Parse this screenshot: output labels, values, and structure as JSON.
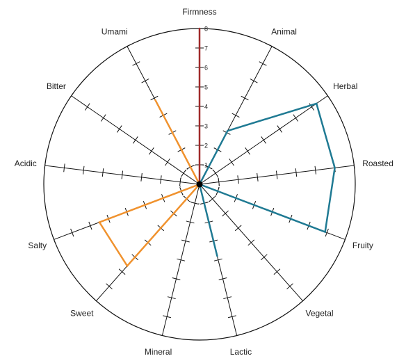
{
  "chart_data": {
    "type": "radar",
    "categories": [
      "Firmness",
      "Animal",
      "Herbal",
      "Roasted",
      "Fruity",
      "Vegetal",
      "Lactic",
      "Mineral",
      "Sweet",
      "Salty",
      "Acidic",
      "Bitter",
      "Umami"
    ],
    "rlim": [
      0,
      8
    ],
    "tick_labels": [
      "1",
      "2",
      "3",
      "4",
      "5",
      "6",
      "7",
      "8"
    ],
    "grid": false,
    "series": [
      {
        "color": "#a02a2a",
        "values": [
          8,
          0,
          0,
          0,
          0,
          0,
          0,
          0,
          0,
          0,
          0,
          0,
          0
        ]
      },
      {
        "color": "#1f7a93",
        "values": [
          0,
          3.1,
          7.3,
          7.0,
          6.9,
          0,
          3.8,
          0,
          0,
          0,
          0,
          0,
          0
        ]
      },
      {
        "color": "#f0922e",
        "values": [
          0,
          0,
          0,
          0,
          0,
          0,
          0,
          0,
          5.6,
          5.5,
          0,
          0,
          4.9
        ]
      }
    ]
  }
}
